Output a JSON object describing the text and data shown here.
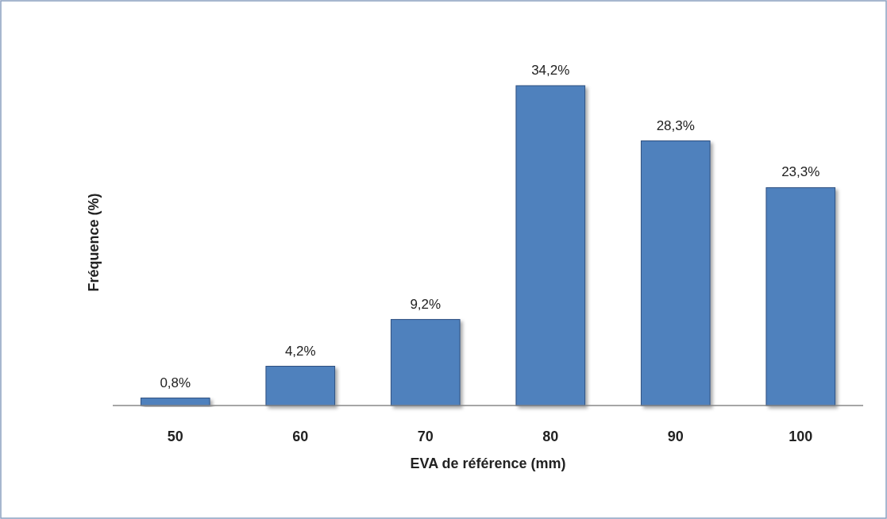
{
  "chart_data": {
    "type": "bar",
    "xlabel": "EVA de référence (mm)",
    "ylabel": "Fréquence (%)",
    "categories": [
      "50",
      "60",
      "70",
      "80",
      "90",
      "100"
    ],
    "values": [
      0.8,
      4.2,
      9.2,
      34.2,
      28.3,
      23.3
    ],
    "value_labels": [
      "0,8%",
      "4,2%",
      "9,2%",
      "34,2%",
      "28,3%",
      "23,3%"
    ],
    "color": "#4f81bd"
  }
}
